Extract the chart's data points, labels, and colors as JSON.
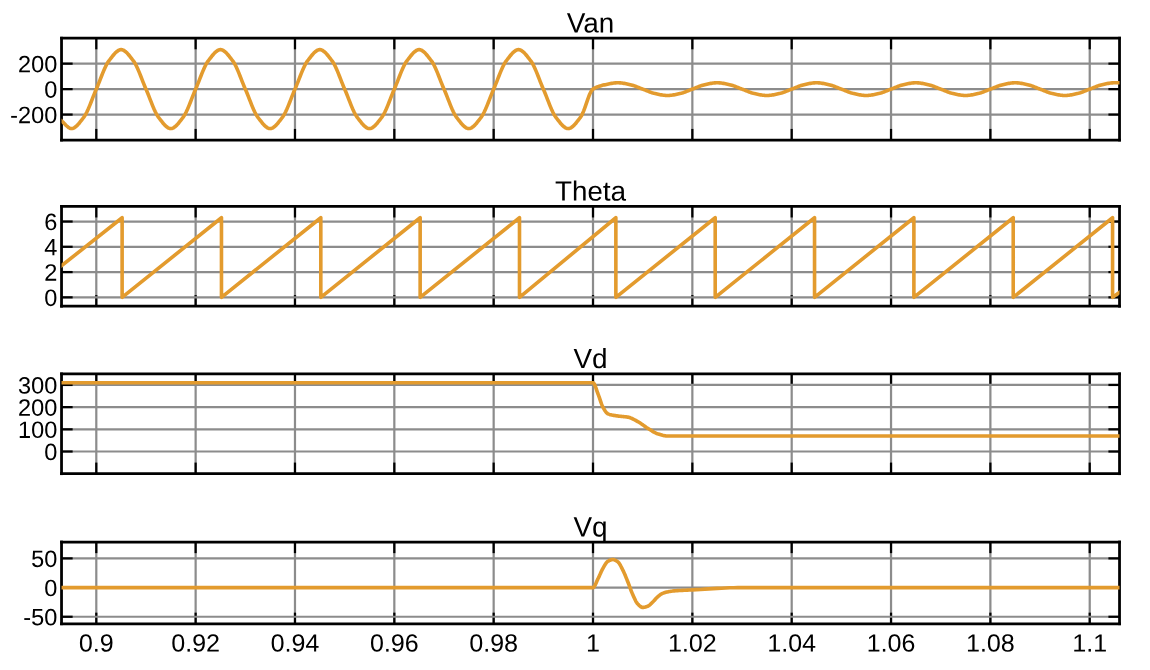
{
  "chart_data": [
    {
      "type": "line",
      "title": "Van",
      "xlim": [
        0.893,
        1.106
      ],
      "xticks": [
        0.9,
        0.92,
        0.94,
        0.96,
        0.98,
        1,
        1.02,
        1.04,
        1.06,
        1.08,
        1.1
      ],
      "ylim": [
        -400,
        400
      ],
      "yticks": [
        {
          "value": -200,
          "label": "-200"
        },
        0,
        200
      ],
      "grid": true,
      "tick_labels": "y",
      "series": [
        {
          "color": "#e39b2e",
          "x": [
            0.893,
            0.895,
            0.8975,
            0.9,
            0.9025,
            0.905,
            0.9075,
            0.91,
            0.9125,
            0.915,
            0.9175,
            0.92,
            0.9225,
            0.925,
            0.9275,
            0.93,
            0.9325,
            0.935,
            0.9375,
            0.94,
            0.9425,
            0.945,
            0.9475,
            0.95,
            0.9525,
            0.955,
            0.9575,
            0.96,
            0.9625,
            0.965,
            0.9675,
            0.97,
            0.9725,
            0.975,
            0.9775,
            0.98,
            0.9825,
            0.985,
            0.9875,
            0.99,
            0.9925,
            0.995,
            0.9975,
            1.0,
            1.0025,
            1.005,
            1.0075,
            1.01,
            1.0125,
            1.015,
            1.0175,
            1.02,
            1.0225,
            1.025,
            1.0275,
            1.03,
            1.0325,
            1.035,
            1.0375,
            1.04,
            1.0425,
            1.045,
            1.0475,
            1.05,
            1.0525,
            1.055,
            1.0575,
            1.06,
            1.0625,
            1.065,
            1.0675,
            1.07,
            1.0725,
            1.075,
            1.0775,
            1.08,
            1.0825,
            1.085,
            1.0875,
            1.09,
            1.0925,
            1.095,
            1.0975,
            1.1,
            1.1025,
            1.105,
            1.106
          ],
          "values": [
            -250,
            -310,
            -220,
            0,
            220,
            310,
            220,
            0,
            -220,
            -310,
            -220,
            0,
            220,
            310,
            220,
            0,
            -220,
            -310,
            -220,
            0,
            220,
            310,
            220,
            0,
            -220,
            -310,
            -220,
            0,
            220,
            310,
            220,
            0,
            -220,
            -310,
            -220,
            0,
            220,
            310,
            220,
            0,
            -220,
            -310,
            -220,
            0,
            35,
            50,
            35,
            0,
            -35,
            -50,
            -35,
            0,
            35,
            50,
            35,
            0,
            -35,
            -50,
            -35,
            0,
            35,
            50,
            35,
            0,
            -35,
            -50,
            -35,
            0,
            35,
            50,
            35,
            0,
            -35,
            -50,
            -35,
            0,
            35,
            50,
            35,
            0,
            -35,
            -50,
            -35,
            0,
            35,
            50,
            50
          ]
        }
      ]
    },
    {
      "type": "line",
      "title": "Theta",
      "xlim": [
        0.893,
        1.106
      ],
      "xticks": [
        0.9,
        0.92,
        0.94,
        0.96,
        0.98,
        1,
        1.02,
        1.04,
        1.06,
        1.08,
        1.1
      ],
      "ylim": [
        -0.7,
        7.2
      ],
      "yticks": [
        0,
        2,
        4,
        6
      ],
      "grid": true,
      "tick_labels": "y",
      "series": [
        {
          "color": "#e39b2e",
          "x": [
            0.893,
            0.9052,
            0.9052,
            0.9252,
            0.9252,
            0.9452,
            0.9452,
            0.9652,
            0.9652,
            0.9852,
            0.9852,
            1.0046,
            1.0046,
            1.0246,
            1.0246,
            1.0446,
            1.0446,
            1.0646,
            1.0646,
            1.0846,
            1.0846,
            1.1046,
            1.1046,
            1.106
          ],
          "values": [
            2.5,
            6.3,
            0,
            6.3,
            0,
            6.3,
            0,
            6.3,
            0,
            6.3,
            0,
            6.3,
            0,
            6.3,
            0,
            6.3,
            0,
            6.3,
            0,
            6.3,
            0,
            6.3,
            0,
            0.4
          ]
        }
      ]
    },
    {
      "type": "line",
      "title": "Vd",
      "xlim": [
        0.893,
        1.106
      ],
      "xticks": [
        0.9,
        0.92,
        0.94,
        0.96,
        0.98,
        1,
        1.02,
        1.04,
        1.06,
        1.08,
        1.1
      ],
      "ylim": [
        -100,
        350
      ],
      "yticks": [
        0,
        100,
        200,
        300
      ],
      "grid": true,
      "tick_labels": "y",
      "series": [
        {
          "color": "#e39b2e",
          "x": [
            0.893,
            1.0,
            1.001,
            1.002,
            1.003,
            1.005,
            1.007,
            1.009,
            1.011,
            1.013,
            1.015,
            1.02,
            1.106
          ],
          "values": [
            310,
            310,
            260,
            200,
            170,
            160,
            155,
            135,
            105,
            80,
            70,
            70,
            70
          ]
        }
      ]
    },
    {
      "type": "line",
      "title": "Vq",
      "xlim": [
        0.893,
        1.106
      ],
      "xticks": [
        0.9,
        0.92,
        0.94,
        0.96,
        0.98,
        1,
        1.02,
        1.04,
        1.06,
        1.08,
        1.1
      ],
      "ylim": [
        -62,
        78
      ],
      "yticks": [
        {
          "value": -50,
          "label": "-50"
        },
        0,
        50
      ],
      "grid": true,
      "series": [
        {
          "color": "#e39b2e",
          "x": [
            0.893,
            1.0,
            1.001,
            1.002,
            1.003,
            1.004,
            1.005,
            1.006,
            1.007,
            1.008,
            1.009,
            1.01,
            1.011,
            1.012,
            1.013,
            1.014,
            1.016,
            1.02,
            1.03,
            1.106
          ],
          "values": [
            0,
            0,
            15,
            33,
            45,
            48,
            44,
            30,
            10,
            -12,
            -28,
            -34,
            -32,
            -25,
            -16,
            -10,
            -6,
            -4,
            0,
            0
          ]
        }
      ]
    }
  ]
}
